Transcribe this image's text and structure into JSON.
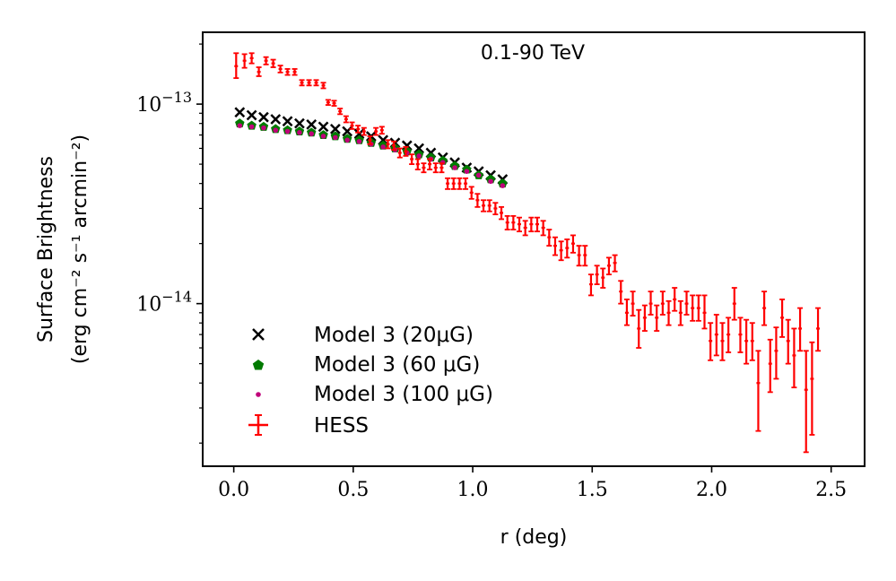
{
  "chart_data": {
    "type": "scatter",
    "title": "0.1-90 TeV",
    "xlabel": "r (deg)",
    "ylabel_line1": "Surface Brightness",
    "ylabel_line2": "(erg cm⁻² s⁻¹ arcmin⁻²)",
    "xlim": [
      -0.13,
      2.64
    ],
    "ylim_log10": [
      -14.815,
      -12.64
    ],
    "y_scale": "log",
    "x_ticks": [
      0.0,
      0.5,
      1.0,
      1.5,
      2.0,
      2.5
    ],
    "x_tick_labels": [
      "0.0",
      "0.5",
      "1.0",
      "1.5",
      "2.0",
      "2.5"
    ],
    "y_major_ticks_log10": [
      -14,
      -13
    ],
    "y_tick_labels": [
      {
        "base": "10",
        "exp": "−14"
      },
      {
        "base": "10",
        "exp": "−13"
      }
    ],
    "y_minor_ticks": [
      2e-15,
      3e-15,
      4e-15,
      5e-15,
      6e-15,
      7e-15,
      8e-15,
      9e-15,
      2e-14,
      3e-14,
      4e-14,
      5e-14,
      6e-14,
      7e-14,
      8e-14,
      9e-14,
      2e-13
    ],
    "legend_position": "lower-left",
    "series": [
      {
        "name": "Model 3 (20μG)",
        "marker": "x",
        "color": "#000000",
        "x": [
          0.025,
          0.075,
          0.125,
          0.175,
          0.225,
          0.275,
          0.325,
          0.375,
          0.425,
          0.475,
          0.525,
          0.575,
          0.625,
          0.675,
          0.725,
          0.775,
          0.825,
          0.875,
          0.925,
          0.975,
          1.025,
          1.075,
          1.125
        ],
        "y": [
          9.1e-14,
          8.8e-14,
          8.6e-14,
          8.4e-14,
          8.2e-14,
          8e-14,
          7.9e-14,
          7.7e-14,
          7.5e-14,
          7.3e-14,
          7.1e-14,
          6.9e-14,
          6.6e-14,
          6.4e-14,
          6.2e-14,
          6e-14,
          5.7e-14,
          5.4e-14,
          5.1e-14,
          4.8e-14,
          4.6e-14,
          4.4e-14,
          4.2e-14
        ]
      },
      {
        "name": "Model 3 (60 μG)",
        "marker": "pentagon",
        "color": "#007a00",
        "x": [
          0.025,
          0.075,
          0.125,
          0.175,
          0.225,
          0.275,
          0.325,
          0.375,
          0.425,
          0.475,
          0.525,
          0.575,
          0.625,
          0.675,
          0.725,
          0.775,
          0.825,
          0.875,
          0.925,
          0.975,
          1.025,
          1.075,
          1.125
        ],
        "y": [
          8e-14,
          7.8e-14,
          7.7e-14,
          7.5e-14,
          7.4e-14,
          7.3e-14,
          7.2e-14,
          7e-14,
          6.9e-14,
          6.7e-14,
          6.6e-14,
          6.4e-14,
          6.2e-14,
          6e-14,
          5.8e-14,
          5.6e-14,
          5.4e-14,
          5.2e-14,
          4.9e-14,
          4.7e-14,
          4.4e-14,
          4.2e-14,
          4e-14
        ]
      },
      {
        "name": "Model 3 (100 μG)",
        "marker": "dot",
        "color": "#c0007a",
        "x": [
          0.025,
          0.075,
          0.125,
          0.175,
          0.225,
          0.275,
          0.325,
          0.375,
          0.425,
          0.475,
          0.525,
          0.575,
          0.625,
          0.675,
          0.725,
          0.775,
          0.825,
          0.875,
          0.925,
          0.975,
          1.025,
          1.075,
          1.125
        ],
        "y": [
          7.8e-14,
          7.7e-14,
          7.6e-14,
          7.4e-14,
          7.3e-14,
          7.2e-14,
          7.1e-14,
          6.9e-14,
          6.8e-14,
          6.6e-14,
          6.5e-14,
          6.3e-14,
          6.1e-14,
          5.9e-14,
          5.7e-14,
          5.5e-14,
          5.3e-14,
          5.1e-14,
          4.8e-14,
          4.6e-14,
          4.4e-14,
          4.1e-14,
          3.9e-14
        ]
      },
      {
        "name": "HESS",
        "marker": "errorbar",
        "color": "#ff0000",
        "x_err": 0.0075,
        "points": [
          {
            "x": 0.01,
            "y": 1.55e-13,
            "lo": 1.35e-13,
            "hi": 1.8e-13
          },
          {
            "x": 0.045,
            "y": 1.65e-13,
            "lo": 1.52e-13,
            "hi": 1.78e-13
          },
          {
            "x": 0.075,
            "y": 1.7e-13,
            "lo": 1.6e-13,
            "hi": 1.8e-13
          },
          {
            "x": 0.105,
            "y": 1.45e-13,
            "lo": 1.38e-13,
            "hi": 1.53e-13
          },
          {
            "x": 0.135,
            "y": 1.65e-13,
            "lo": 1.58e-13,
            "hi": 1.72e-13
          },
          {
            "x": 0.165,
            "y": 1.6e-13,
            "lo": 1.53e-13,
            "hi": 1.67e-13
          },
          {
            "x": 0.195,
            "y": 1.5e-13,
            "lo": 1.44e-13,
            "hi": 1.56e-13
          },
          {
            "x": 0.225,
            "y": 1.45e-13,
            "lo": 1.4e-13,
            "hi": 1.5e-13
          },
          {
            "x": 0.255,
            "y": 1.45e-13,
            "lo": 1.4e-13,
            "hi": 1.5e-13
          },
          {
            "x": 0.285,
            "y": 1.28e-13,
            "lo": 1.24e-13,
            "hi": 1.32e-13
          },
          {
            "x": 0.315,
            "y": 1.28e-13,
            "lo": 1.24e-13,
            "hi": 1.32e-13
          },
          {
            "x": 0.345,
            "y": 1.28e-13,
            "lo": 1.24e-13,
            "hi": 1.32e-13
          },
          {
            "x": 0.375,
            "y": 1.24e-13,
            "lo": 1.2e-13,
            "hi": 1.28e-13
          },
          {
            "x": 0.395,
            "y": 1.02e-13,
            "lo": 9.9e-14,
            "hi": 1.05e-13
          },
          {
            "x": 0.42,
            "y": 1.01e-13,
            "lo": 9.8e-14,
            "hi": 1.04e-13
          },
          {
            "x": 0.445,
            "y": 9.2e-14,
            "lo": 8.9e-14,
            "hi": 9.5e-14
          },
          {
            "x": 0.47,
            "y": 8.4e-14,
            "lo": 8.1e-14,
            "hi": 8.7e-14
          },
          {
            "x": 0.495,
            "y": 7.8e-14,
            "lo": 7.5e-14,
            "hi": 8.1e-14
          },
          {
            "x": 0.52,
            "y": 7.5e-14,
            "lo": 7.2e-14,
            "hi": 7.8e-14
          },
          {
            "x": 0.545,
            "y": 7.3e-14,
            "lo": 7e-14,
            "hi": 7.6e-14
          },
          {
            "x": 0.57,
            "y": 6.6e-14,
            "lo": 6.3e-14,
            "hi": 6.9e-14
          },
          {
            "x": 0.595,
            "y": 7.3e-14,
            "lo": 7e-14,
            "hi": 7.6e-14
          },
          {
            "x": 0.62,
            "y": 7.4e-14,
            "lo": 7.1e-14,
            "hi": 7.7e-14
          },
          {
            "x": 0.645,
            "y": 6.3e-14,
            "lo": 6e-14,
            "hi": 6.6e-14
          },
          {
            "x": 0.67,
            "y": 6.2e-14,
            "lo": 5.9e-14,
            "hi": 6.5e-14
          },
          {
            "x": 0.695,
            "y": 5.7e-14,
            "lo": 5.4e-14,
            "hi": 6e-14
          },
          {
            "x": 0.72,
            "y": 5.8e-14,
            "lo": 5.5e-14,
            "hi": 6.1e-14
          },
          {
            "x": 0.745,
            "y": 5.3e-14,
            "lo": 5e-14,
            "hi": 5.6e-14
          },
          {
            "x": 0.77,
            "y": 5e-14,
            "lo": 4.7e-14,
            "hi": 5.3e-14
          },
          {
            "x": 0.795,
            "y": 4.8e-14,
            "lo": 4.55e-14,
            "hi": 5.05e-14
          },
          {
            "x": 0.82,
            "y": 5e-14,
            "lo": 4.7e-14,
            "hi": 5.3e-14
          },
          {
            "x": 0.845,
            "y": 4.8e-14,
            "lo": 4.55e-14,
            "hi": 5.05e-14
          },
          {
            "x": 0.87,
            "y": 4.8e-14,
            "lo": 4.55e-14,
            "hi": 5.05e-14
          },
          {
            "x": 0.895,
            "y": 4e-14,
            "lo": 3.75e-14,
            "hi": 4.25e-14
          },
          {
            "x": 0.92,
            "y": 4e-14,
            "lo": 3.75e-14,
            "hi": 4.25e-14
          },
          {
            "x": 0.945,
            "y": 4e-14,
            "lo": 3.75e-14,
            "hi": 4.25e-14
          },
          {
            "x": 0.97,
            "y": 4e-14,
            "lo": 3.75e-14,
            "hi": 4.25e-14
          },
          {
            "x": 0.995,
            "y": 3.6e-14,
            "lo": 3.35e-14,
            "hi": 3.85e-14
          },
          {
            "x": 1.02,
            "y": 3.3e-14,
            "lo": 3.05e-14,
            "hi": 3.55e-14
          },
          {
            "x": 1.045,
            "y": 3.1e-14,
            "lo": 2.9e-14,
            "hi": 3.3e-14
          },
          {
            "x": 1.07,
            "y": 3.1e-14,
            "lo": 2.9e-14,
            "hi": 3.3e-14
          },
          {
            "x": 1.095,
            "y": 3e-14,
            "lo": 2.8e-14,
            "hi": 3.2e-14
          },
          {
            "x": 1.12,
            "y": 2.85e-14,
            "lo": 2.65e-14,
            "hi": 3.05e-14
          },
          {
            "x": 1.145,
            "y": 2.55e-14,
            "lo": 2.35e-14,
            "hi": 2.75e-14
          },
          {
            "x": 1.17,
            "y": 2.55e-14,
            "lo": 2.35e-14,
            "hi": 2.75e-14
          },
          {
            "x": 1.195,
            "y": 2.5e-14,
            "lo": 2.3e-14,
            "hi": 2.7e-14
          },
          {
            "x": 1.22,
            "y": 2.4e-14,
            "lo": 2.2e-14,
            "hi": 2.6e-14
          },
          {
            "x": 1.245,
            "y": 2.5e-14,
            "lo": 2.3e-14,
            "hi": 2.7e-14
          },
          {
            "x": 1.27,
            "y": 2.5e-14,
            "lo": 2.3e-14,
            "hi": 2.7e-14
          },
          {
            "x": 1.295,
            "y": 2.4e-14,
            "lo": 2.2e-14,
            "hi": 2.6e-14
          },
          {
            "x": 1.32,
            "y": 2.15e-14,
            "lo": 1.95e-14,
            "hi": 2.35e-14
          },
          {
            "x": 1.345,
            "y": 1.95e-14,
            "lo": 1.75e-14,
            "hi": 2.15e-14
          },
          {
            "x": 1.37,
            "y": 1.85e-14,
            "lo": 1.65e-14,
            "hi": 2.05e-14
          },
          {
            "x": 1.395,
            "y": 1.9e-14,
            "lo": 1.7e-14,
            "hi": 2.1e-14
          },
          {
            "x": 1.42,
            "y": 2e-14,
            "lo": 1.8e-14,
            "hi": 2.2e-14
          },
          {
            "x": 1.445,
            "y": 1.75e-14,
            "lo": 1.55e-14,
            "hi": 1.95e-14
          },
          {
            "x": 1.47,
            "y": 1.75e-14,
            "lo": 1.55e-14,
            "hi": 1.95e-14
          },
          {
            "x": 1.495,
            "y": 1.25e-14,
            "lo": 1.1e-14,
            "hi": 1.4e-14
          },
          {
            "x": 1.52,
            "y": 1.4e-14,
            "lo": 1.25e-14,
            "hi": 1.55e-14
          },
          {
            "x": 1.545,
            "y": 1.35e-14,
            "lo": 1.2e-14,
            "hi": 1.5e-14
          },
          {
            "x": 1.57,
            "y": 1.55e-14,
            "lo": 1.4e-14,
            "hi": 1.7e-14
          },
          {
            "x": 1.595,
            "y": 1.6e-14,
            "lo": 1.45e-14,
            "hi": 1.75e-14
          },
          {
            "x": 1.62,
            "y": 1.15e-14,
            "lo": 1e-14,
            "hi": 1.3e-14
          },
          {
            "x": 1.645,
            "y": 9e-15,
            "lo": 7.8e-15,
            "hi": 1.05e-14
          },
          {
            "x": 1.67,
            "y": 1e-14,
            "lo": 8.7e-15,
            "hi": 1.15e-14
          },
          {
            "x": 1.695,
            "y": 7.5e-15,
            "lo": 6e-15,
            "hi": 9.3e-15
          },
          {
            "x": 1.72,
            "y": 8.5e-15,
            "lo": 7.3e-15,
            "hi": 9.8e-15
          },
          {
            "x": 1.745,
            "y": 1e-14,
            "lo": 8.8e-15,
            "hi": 1.15e-14
          },
          {
            "x": 1.77,
            "y": 8.5e-15,
            "lo": 7.3e-15,
            "hi": 9.8e-15
          },
          {
            "x": 1.795,
            "y": 1e-14,
            "lo": 8.8e-15,
            "hi": 1.15e-14
          },
          {
            "x": 1.82,
            "y": 9e-15,
            "lo": 7.8e-15,
            "hi": 1.03e-14
          },
          {
            "x": 1.845,
            "y": 1.05e-14,
            "lo": 9.2e-15,
            "hi": 1.2e-14
          },
          {
            "x": 1.87,
            "y": 9e-15,
            "lo": 7.8e-15,
            "hi": 1.03e-14
          },
          {
            "x": 1.895,
            "y": 1e-14,
            "lo": 8.8e-15,
            "hi": 1.15e-14
          },
          {
            "x": 1.92,
            "y": 9.5e-15,
            "lo": 8.2e-15,
            "hi": 1.1e-14
          },
          {
            "x": 1.945,
            "y": 9.5e-15,
            "lo": 8.2e-15,
            "hi": 1.1e-14
          },
          {
            "x": 1.97,
            "y": 9e-15,
            "lo": 7.5e-15,
            "hi": 1.1e-14
          },
          {
            "x": 1.995,
            "y": 6.5e-15,
            "lo": 5.2e-15,
            "hi": 8e-15
          },
          {
            "x": 2.02,
            "y": 7e-15,
            "lo": 5.5e-15,
            "hi": 8.8e-15
          },
          {
            "x": 2.045,
            "y": 6.5e-15,
            "lo": 5.2e-15,
            "hi": 8e-15
          },
          {
            "x": 2.07,
            "y": 7e-15,
            "lo": 5.7e-15,
            "hi": 8.5e-15
          },
          {
            "x": 2.095,
            "y": 1e-14,
            "lo": 8.3e-15,
            "hi": 1.2e-14
          },
          {
            "x": 2.12,
            "y": 7e-15,
            "lo": 5.7e-15,
            "hi": 8.5e-15
          },
          {
            "x": 2.145,
            "y": 6.5e-15,
            "lo": 5e-15,
            "hi": 8.3e-15
          },
          {
            "x": 2.17,
            "y": 6.5e-15,
            "lo": 5.2e-15,
            "hi": 8e-15
          },
          {
            "x": 2.195,
            "y": 4e-15,
            "lo": 2.3e-15,
            "hi": 5.8e-15
          },
          {
            "x": 2.22,
            "y": 9.5e-15,
            "lo": 7.8e-15,
            "hi": 1.15e-14
          },
          {
            "x": 2.245,
            "y": 5e-15,
            "lo": 3.6e-15,
            "hi": 6.6e-15
          },
          {
            "x": 2.27,
            "y": 5.8e-15,
            "lo": 4.2e-15,
            "hi": 7.6e-15
          },
          {
            "x": 2.295,
            "y": 8.5e-15,
            "lo": 6.8e-15,
            "hi": 1.05e-14
          },
          {
            "x": 2.32,
            "y": 6.5e-15,
            "lo": 5e-15,
            "hi": 8.3e-15
          },
          {
            "x": 2.345,
            "y": 5.5e-15,
            "lo": 3.8e-15,
            "hi": 7.5e-15
          },
          {
            "x": 2.37,
            "y": 7.5e-15,
            "lo": 5.8e-15,
            "hi": 9.5e-15
          },
          {
            "x": 2.395,
            "y": 3.7e-15,
            "lo": 1.8e-15,
            "hi": 5.8e-15
          },
          {
            "x": 2.42,
            "y": 4.2e-15,
            "lo": 2.2e-15,
            "hi": 6.4e-15
          },
          {
            "x": 2.445,
            "y": 7.5e-15,
            "lo": 5.8e-15,
            "hi": 9.5e-15
          }
        ]
      }
    ],
    "legend_entries": [
      "Model 3 (20μG)",
      "Model 3 (60 μG)",
      "Model 3 (100 μG)",
      "HESS"
    ]
  }
}
